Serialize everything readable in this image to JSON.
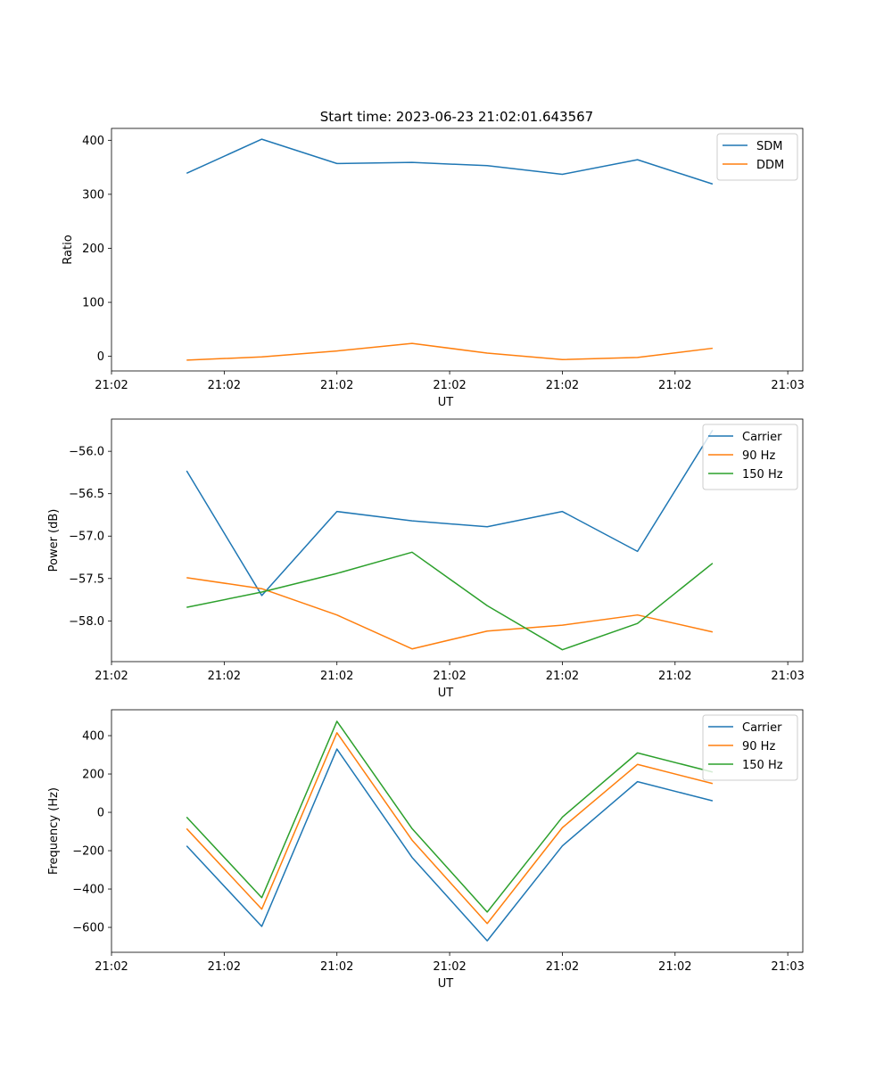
{
  "figure": {
    "title": "Start time: 2023-06-23 21:02:01.643567"
  },
  "chart_data": [
    {
      "type": "line",
      "title": "Start time: 2023-06-23 21:02:01.643567",
      "xlabel": "UT",
      "ylabel": "Ratio",
      "x": [
        0.5,
        1,
        1.5,
        2,
        2.5,
        3,
        3.5,
        4
      ],
      "xlim": [
        0,
        4.6
      ],
      "xticks": [
        0.0,
        0.75,
        1.5,
        2.25,
        3.0,
        3.75,
        4.5
      ],
      "xtick_labels": [
        "21:02",
        "21:02",
        "21:02",
        "21:02",
        "21:02",
        "21:02",
        "21:03"
      ],
      "ylim": [
        -27,
        422
      ],
      "yticks": [
        0,
        100,
        200,
        300,
        400
      ],
      "ytick_labels": [
        "0",
        "100",
        "200",
        "300",
        "400"
      ],
      "legend_position": "top-right",
      "grid": false,
      "series": [
        {
          "name": "SDM",
          "color": "#1f77b4",
          "values": [
            339,
            402,
            357,
            359,
            353,
            337,
            364,
            319
          ]
        },
        {
          "name": "DDM",
          "color": "#ff7f0e",
          "values": [
            -7,
            -1,
            10,
            24,
            6,
            -6,
            -2,
            15
          ]
        }
      ]
    },
    {
      "type": "line",
      "xlabel": "UT",
      "ylabel": "Power (dB)",
      "x": [
        0.5,
        1,
        1.5,
        2,
        2.5,
        3,
        3.5,
        4
      ],
      "xlim": [
        0,
        4.6
      ],
      "xticks": [
        0.0,
        0.75,
        1.5,
        2.25,
        3.0,
        3.75,
        4.5
      ],
      "xtick_labels": [
        "21:02",
        "21:02",
        "21:02",
        "21:02",
        "21:02",
        "21:02",
        "21:03"
      ],
      "ylim": [
        -58.48,
        -55.62
      ],
      "yticks": [
        -56.0,
        -56.5,
        -57.0,
        -57.5,
        -58.0
      ],
      "ytick_labels": [
        "−56.0",
        "−56.5",
        "−57.0",
        "−57.5",
        "−58.0"
      ],
      "legend_position": "top-right",
      "grid": false,
      "series": [
        {
          "name": "Carrier",
          "color": "#1f77b4",
          "values": [
            -56.23,
            -57.7,
            -56.71,
            -56.82,
            -56.89,
            -56.71,
            -57.18,
            -55.75
          ]
        },
        {
          "name": "90 Hz",
          "color": "#ff7f0e",
          "values": [
            -57.49,
            -57.62,
            -57.93,
            -58.33,
            -58.12,
            -58.05,
            -57.93,
            -58.13
          ]
        },
        {
          "name": "150 Hz",
          "color": "#2ca02c",
          "values": [
            -57.84,
            -57.66,
            -57.44,
            -57.19,
            -57.82,
            -58.34,
            -58.03,
            -57.32
          ]
        }
      ]
    },
    {
      "type": "line",
      "xlabel": "UT",
      "ylabel": "Frequency (Hz)",
      "x": [
        0.5,
        1,
        1.5,
        2,
        2.5,
        3,
        3.5,
        4
      ],
      "xlim": [
        0,
        4.6
      ],
      "xticks": [
        0.0,
        0.75,
        1.5,
        2.25,
        3.0,
        3.75,
        4.5
      ],
      "xtick_labels": [
        "21:02",
        "21:02",
        "21:02",
        "21:02",
        "21:02",
        "21:02",
        "21:03"
      ],
      "ylim": [
        -730,
        535
      ],
      "yticks": [
        400,
        200,
        0,
        -200,
        -400,
        -600
      ],
      "ytick_labels": [
        "400",
        "200",
        "0",
        "−200",
        "−400",
        "−600"
      ],
      "legend_position": "top-right",
      "grid": false,
      "series": [
        {
          "name": "Carrier",
          "color": "#1f77b4",
          "values": [
            -175,
            -595,
            330,
            -235,
            -670,
            -175,
            160,
            60
          ]
        },
        {
          "name": "90 Hz",
          "color": "#ff7f0e",
          "values": [
            -85,
            -505,
            415,
            -145,
            -580,
            -80,
            250,
            150
          ]
        },
        {
          "name": "150 Hz",
          "color": "#2ca02c",
          "values": [
            -25,
            -445,
            475,
            -85,
            -520,
            -25,
            310,
            210
          ]
        }
      ]
    }
  ]
}
